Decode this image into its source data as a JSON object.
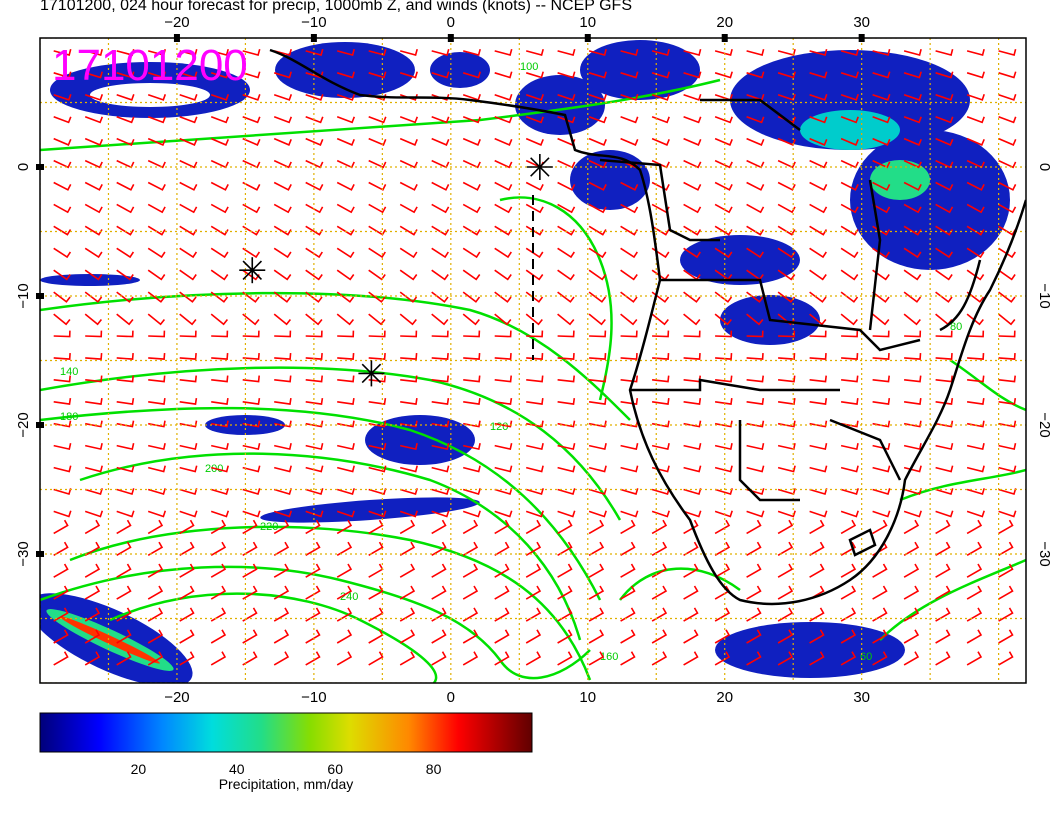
{
  "title": "17101200, 024 hour forecast for precip, 1000mb Z, and winds (knots) -- NCEP GFS",
  "stamp": "17101200",
  "map": {
    "lon_range": [
      -30,
      42
    ],
    "lat_range": [
      -40,
      10
    ],
    "x_ticks": [
      {
        "value": -20,
        "label": "−20"
      },
      {
        "value": -10,
        "label": "−10"
      },
      {
        "value": 0,
        "label": "0"
      },
      {
        "value": 10,
        "label": "10"
      },
      {
        "value": 20,
        "label": "20"
      },
      {
        "value": 30,
        "label": "30"
      }
    ],
    "y_ticks": [
      {
        "value": 0,
        "label": "0"
      },
      {
        "value": -10,
        "label": "−10"
      },
      {
        "value": -20,
        "label": "−20"
      },
      {
        "value": -30,
        "label": "−30"
      }
    ],
    "grid_color": "#e0b000",
    "contour_color": "#00e000",
    "barb_color": "#ff0000",
    "coast_color": "#000000",
    "contour_labels": [
      "100",
      "140",
      "180",
      "200",
      "220",
      "240",
      "160",
      "120",
      "60",
      "80"
    ],
    "markers": [
      {
        "name": "asterisk-1",
        "lon": -14.5,
        "lat": -8
      },
      {
        "name": "asterisk-2",
        "lon": -5.8,
        "lat": -16
      },
      {
        "name": "asterisk-3",
        "lon": 6.5,
        "lat": 0
      }
    ]
  },
  "colorbar": {
    "label": "Precipitation, mm/day",
    "min": 0,
    "max": 100,
    "ticks": [
      {
        "value": 20,
        "label": "20"
      },
      {
        "value": 40,
        "label": "40"
      },
      {
        "value": 60,
        "label": "60"
      },
      {
        "value": 80,
        "label": "80"
      }
    ],
    "colors": [
      "#00007a",
      "#0000ff",
      "#0088ff",
      "#00dddd",
      "#22dd88",
      "#88dd00",
      "#dddd00",
      "#ff8800",
      "#ff0000",
      "#aa0000",
      "#600000"
    ]
  }
}
